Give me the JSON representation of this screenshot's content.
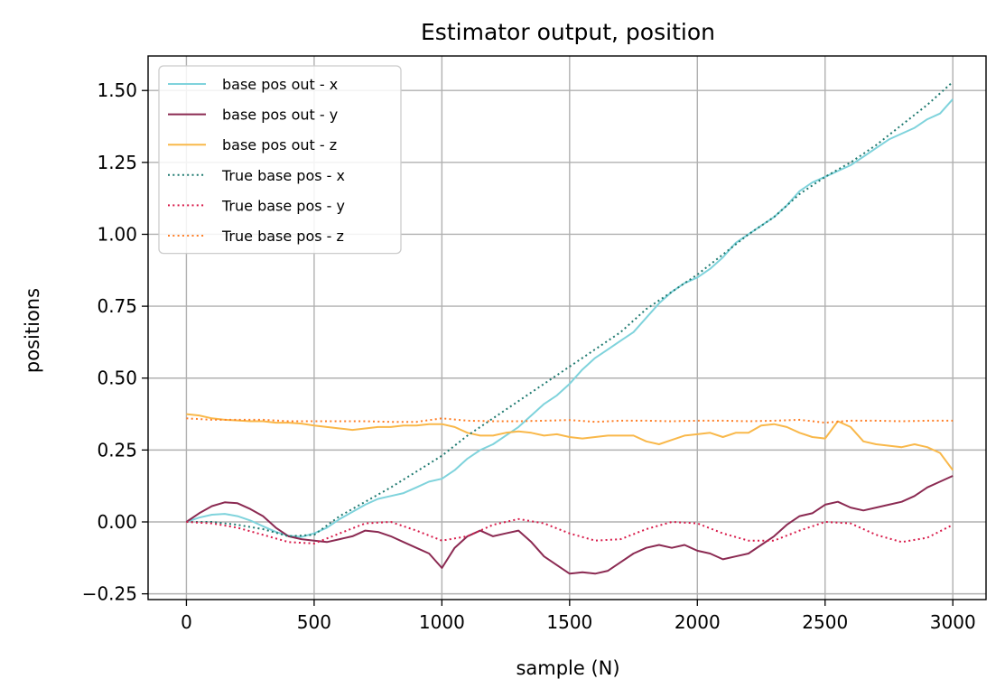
{
  "chart_data": {
    "type": "line",
    "title": "Estimator output, position",
    "xlabel": "sample (N)",
    "ylabel": "positions",
    "xlim": [
      -150,
      3130
    ],
    "ylim": [
      -0.27,
      1.62
    ],
    "xticks": [
      0,
      500,
      1000,
      1500,
      2000,
      2500,
      3000
    ],
    "yticks": [
      -0.25,
      0.0,
      0.25,
      0.5,
      0.75,
      1.0,
      1.25,
      1.5
    ],
    "xtick_labels": [
      "0",
      "500",
      "1000",
      "1500",
      "2000",
      "2500",
      "3000"
    ],
    "ytick_labels": [
      "−0.25",
      "0.00",
      "0.25",
      "0.50",
      "0.75",
      "1.00",
      "1.25",
      "1.50"
    ],
    "grid": true,
    "legend_position": "top-left",
    "series": [
      {
        "name": "base pos out - x",
        "color": "#7fd3dc",
        "style": "solid",
        "x": [
          0,
          50,
          100,
          150,
          200,
          250,
          300,
          350,
          400,
          450,
          500,
          550,
          600,
          650,
          700,
          750,
          800,
          850,
          900,
          950,
          1000,
          1050,
          1100,
          1150,
          1200,
          1250,
          1300,
          1350,
          1400,
          1450,
          1500,
          1550,
          1600,
          1650,
          1700,
          1750,
          1800,
          1850,
          1900,
          1950,
          2000,
          2050,
          2100,
          2150,
          2200,
          2250,
          2300,
          2350,
          2400,
          2450,
          2500,
          2550,
          2600,
          2650,
          2700,
          2750,
          2800,
          2850,
          2900,
          2950,
          3000
        ],
        "y": [
          0.0,
          0.015,
          0.025,
          0.028,
          0.02,
          0.005,
          -0.015,
          -0.035,
          -0.048,
          -0.052,
          -0.04,
          -0.02,
          0.01,
          0.035,
          0.06,
          0.08,
          0.09,
          0.1,
          0.12,
          0.14,
          0.15,
          0.18,
          0.22,
          0.25,
          0.27,
          0.3,
          0.33,
          0.37,
          0.41,
          0.44,
          0.48,
          0.53,
          0.57,
          0.6,
          0.63,
          0.66,
          0.71,
          0.76,
          0.8,
          0.83,
          0.85,
          0.88,
          0.92,
          0.97,
          1.0,
          1.03,
          1.06,
          1.1,
          1.15,
          1.18,
          1.2,
          1.22,
          1.24,
          1.27,
          1.3,
          1.33,
          1.35,
          1.37,
          1.4,
          1.42,
          1.47
        ]
      },
      {
        "name": "base pos out - y",
        "color": "#8b2a52",
        "style": "solid",
        "x": [
          0,
          50,
          100,
          150,
          200,
          250,
          300,
          350,
          400,
          450,
          500,
          550,
          600,
          650,
          700,
          750,
          800,
          850,
          900,
          950,
          1000,
          1050,
          1100,
          1150,
          1200,
          1250,
          1300,
          1350,
          1400,
          1450,
          1500,
          1550,
          1600,
          1650,
          1700,
          1750,
          1800,
          1850,
          1900,
          1950,
          2000,
          2050,
          2100,
          2150,
          2200,
          2250,
          2300,
          2350,
          2400,
          2450,
          2500,
          2550,
          2600,
          2650,
          2700,
          2750,
          2800,
          2850,
          2900,
          2950,
          3000
        ],
        "y": [
          0.0,
          0.03,
          0.055,
          0.068,
          0.065,
          0.045,
          0.02,
          -0.02,
          -0.05,
          -0.06,
          -0.065,
          -0.07,
          -0.06,
          -0.05,
          -0.03,
          -0.035,
          -0.05,
          -0.07,
          -0.09,
          -0.11,
          -0.16,
          -0.09,
          -0.05,
          -0.03,
          -0.05,
          -0.04,
          -0.03,
          -0.07,
          -0.12,
          -0.15,
          -0.18,
          -0.175,
          -0.18,
          -0.17,
          -0.14,
          -0.11,
          -0.09,
          -0.08,
          -0.09,
          -0.08,
          -0.1,
          -0.11,
          -0.13,
          -0.12,
          -0.11,
          -0.08,
          -0.05,
          -0.01,
          0.02,
          0.03,
          0.06,
          0.07,
          0.05,
          0.04,
          0.05,
          0.06,
          0.07,
          0.09,
          0.12,
          0.14,
          0.16
        ]
      },
      {
        "name": "base pos out - z",
        "color": "#f9b84a",
        "style": "solid",
        "x": [
          0,
          50,
          100,
          150,
          200,
          250,
          300,
          350,
          400,
          450,
          500,
          550,
          600,
          650,
          700,
          750,
          800,
          850,
          900,
          950,
          1000,
          1050,
          1100,
          1150,
          1200,
          1250,
          1300,
          1350,
          1400,
          1450,
          1500,
          1550,
          1600,
          1650,
          1700,
          1750,
          1800,
          1850,
          1900,
          1950,
          2000,
          2050,
          2100,
          2150,
          2200,
          2250,
          2300,
          2350,
          2400,
          2450,
          2500,
          2550,
          2600,
          2650,
          2700,
          2750,
          2800,
          2850,
          2900,
          2950,
          3000
        ],
        "y": [
          0.375,
          0.37,
          0.36,
          0.355,
          0.353,
          0.35,
          0.35,
          0.345,
          0.345,
          0.342,
          0.335,
          0.33,
          0.325,
          0.32,
          0.325,
          0.33,
          0.33,
          0.335,
          0.335,
          0.34,
          0.34,
          0.33,
          0.31,
          0.3,
          0.3,
          0.31,
          0.315,
          0.31,
          0.3,
          0.305,
          0.295,
          0.29,
          0.295,
          0.3,
          0.3,
          0.3,
          0.28,
          0.27,
          0.285,
          0.3,
          0.305,
          0.31,
          0.295,
          0.31,
          0.31,
          0.335,
          0.34,
          0.33,
          0.31,
          0.295,
          0.29,
          0.35,
          0.33,
          0.28,
          0.27,
          0.265,
          0.26,
          0.27,
          0.26,
          0.24,
          0.18
        ]
      },
      {
        "name": "True base pos - x",
        "color": "#1f7a70",
        "style": "dotted",
        "x": [
          0,
          100,
          200,
          300,
          400,
          500,
          600,
          700,
          800,
          900,
          1000,
          1100,
          1200,
          1300,
          1400,
          1500,
          1600,
          1700,
          1800,
          1900,
          2000,
          2100,
          2200,
          2300,
          2400,
          2500,
          2600,
          2700,
          2800,
          2900,
          3000
        ],
        "y": [
          0.0,
          0.0,
          -0.01,
          -0.025,
          -0.05,
          -0.045,
          0.02,
          0.07,
          0.12,
          0.175,
          0.23,
          0.3,
          0.36,
          0.42,
          0.48,
          0.54,
          0.6,
          0.66,
          0.74,
          0.8,
          0.86,
          0.93,
          1.0,
          1.06,
          1.14,
          1.2,
          1.25,
          1.31,
          1.38,
          1.45,
          1.53
        ]
      },
      {
        "name": "True base pos - y",
        "color": "#d81b4a",
        "style": "dotted",
        "x": [
          0,
          100,
          200,
          300,
          400,
          500,
          600,
          700,
          800,
          900,
          1000,
          1100,
          1200,
          1300,
          1400,
          1500,
          1600,
          1700,
          1800,
          1900,
          2000,
          2100,
          2200,
          2300,
          2400,
          2500,
          2600,
          2700,
          2800,
          2900,
          3000
        ],
        "y": [
          0.0,
          -0.005,
          -0.02,
          -0.045,
          -0.07,
          -0.075,
          -0.04,
          -0.005,
          0.0,
          -0.03,
          -0.065,
          -0.05,
          -0.01,
          0.01,
          -0.005,
          -0.04,
          -0.065,
          -0.06,
          -0.025,
          0.0,
          -0.005,
          -0.04,
          -0.065,
          -0.065,
          -0.03,
          0.0,
          -0.005,
          -0.045,
          -0.07,
          -0.055,
          -0.01
        ]
      },
      {
        "name": "True base pos - z",
        "color": "#ff7f27",
        "style": "dotted",
        "x": [
          0,
          100,
          200,
          300,
          400,
          500,
          600,
          700,
          800,
          900,
          1000,
          1100,
          1200,
          1300,
          1400,
          1500,
          1600,
          1700,
          1800,
          1900,
          2000,
          2100,
          2200,
          2300,
          2400,
          2500,
          2600,
          2700,
          2800,
          2900,
          3000
        ],
        "y": [
          0.36,
          0.355,
          0.355,
          0.355,
          0.35,
          0.35,
          0.35,
          0.35,
          0.348,
          0.348,
          0.36,
          0.352,
          0.35,
          0.35,
          0.352,
          0.354,
          0.348,
          0.352,
          0.352,
          0.35,
          0.352,
          0.352,
          0.35,
          0.352,
          0.355,
          0.345,
          0.352,
          0.352,
          0.35,
          0.352,
          0.352
        ]
      }
    ]
  }
}
